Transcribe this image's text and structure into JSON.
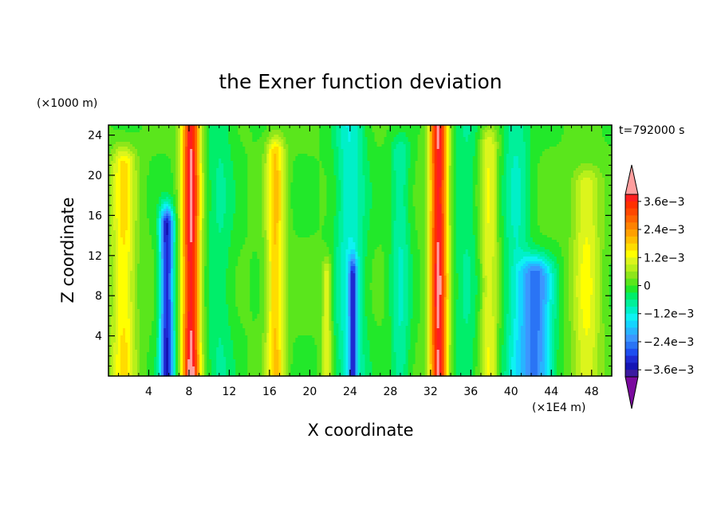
{
  "chart_data": {
    "type": "heatmap",
    "title": "the Exner function deviation",
    "xlabel": "X coordinate",
    "ylabel": "Z coordinate",
    "x_unit": "(×1E4 m)",
    "y_unit": "(×1000 m)",
    "time_label": "t=792000 s",
    "xlim": [
      0,
      50
    ],
    "ylim": [
      0,
      25
    ],
    "x_ticks": [
      4,
      8,
      12,
      16,
      20,
      24,
      28,
      32,
      36,
      40,
      44,
      48
    ],
    "y_ticks": [
      4,
      8,
      12,
      16,
      20,
      24
    ],
    "colorbar": {
      "levels": [
        -0.0042,
        -0.0039,
        -0.0036,
        -0.0033,
        -0.003,
        -0.0027,
        -0.0024,
        -0.0021,
        -0.0018,
        -0.0015,
        -0.0012,
        -0.0009,
        -0.0006,
        -0.0003,
        0,
        0.0003,
        0.0006,
        0.0009,
        0.0012,
        0.0015,
        0.0018,
        0.0021,
        0.0024,
        0.0027,
        0.003,
        0.0033,
        0.0036,
        0.0039,
        0.0042
      ],
      "colors": [
        "#7a0a9e",
        "#3c1aa0",
        "#1414b4",
        "#1e2ad2",
        "#1e4ef0",
        "#2a74f5",
        "#3c96ff",
        "#28b4ff",
        "#14d4ff",
        "#0ef2f2",
        "#00f0c8",
        "#00f09a",
        "#00ee6a",
        "#22e82a",
        "#5ae61c",
        "#8ee61a",
        "#b8f01a",
        "#dcf51c",
        "#ffff00",
        "#ffdc00",
        "#ffbe00",
        "#ffa000",
        "#ff8200",
        "#ff6400",
        "#ff4800",
        "#ff3000",
        "#ff1e1e",
        "#ff9e9e"
      ],
      "labels": [
        {
          "value": 0.0036,
          "text": "3.6e−3"
        },
        {
          "value": 0.0024,
          "text": "2.4e−3"
        },
        {
          "value": 0.0012,
          "text": "1.2e−3"
        },
        {
          "value": 0,
          "text": "0"
        },
        {
          "value": -0.0012,
          "text": "−1.2e−3"
        },
        {
          "value": -0.0024,
          "text": "−2.4e−3"
        },
        {
          "value": -0.0036,
          "text": "−3.6e−3"
        }
      ]
    },
    "features": [
      {
        "x": 8.2,
        "width": 0.9,
        "z_top": 25,
        "peak": 0.0039,
        "base": 0.0042
      },
      {
        "x": 32.8,
        "width": 0.9,
        "z_top": 25,
        "peak": 0.0039,
        "base": 0.0042
      },
      {
        "x": 5.8,
        "width": 0.7,
        "z_top": 15,
        "peak": -0.0033
      },
      {
        "x": 16.6,
        "width": 0.9,
        "z_top": 22,
        "peak": 0.0018
      },
      {
        "x": 1.5,
        "width": 1.2,
        "z_top": 21,
        "peak": 0.0015
      },
      {
        "x": 37.8,
        "width": 0.9,
        "z_top": 23,
        "peak": 0.0012
      },
      {
        "x": 47.5,
        "width": 1.4,
        "z_top": 19,
        "peak": 0.0012
      },
      {
        "x": 42.5,
        "width": 1.6,
        "z_top": 10,
        "peak": -0.0024
      },
      {
        "x": 24.0,
        "width": 1.5,
        "z_top": 25,
        "peak": -0.0012
      },
      {
        "x": 29.0,
        "width": 1.0,
        "z_top": 22,
        "peak": -0.0009
      },
      {
        "x": 21.7,
        "width": 0.5,
        "z_top": 10,
        "peak": 0.0012
      },
      {
        "x": 24.3,
        "width": 0.4,
        "z_top": 10,
        "peak": -0.0021
      },
      {
        "x": 11.0,
        "width": 1.4,
        "z_top": 25,
        "peak": -0.0006
      },
      {
        "x": 35.5,
        "width": 1.4,
        "z_top": 25,
        "peak": -0.0006
      },
      {
        "x": 40.5,
        "width": 1.4,
        "z_top": 25,
        "peak": -0.0009
      }
    ]
  }
}
